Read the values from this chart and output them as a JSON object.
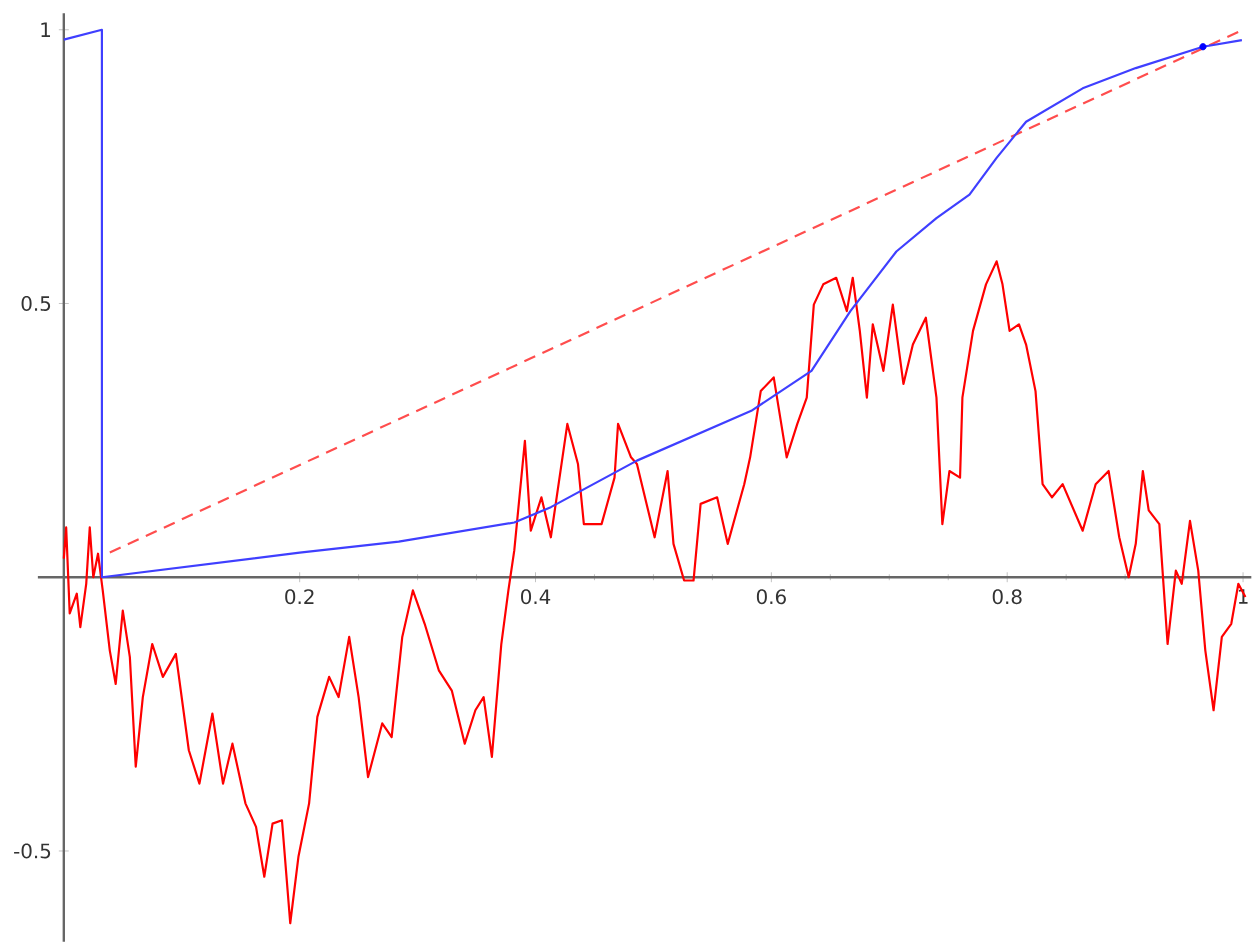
{
  "chart_data": {
    "type": "line",
    "xlim": [
      -0.022,
      1.007
    ],
    "ylim": [
      -0.666,
      1.03
    ],
    "xticks": [
      0.2,
      0.4,
      0.6,
      0.8,
      1
    ],
    "yticks": [
      -0.5,
      0.5,
      1
    ],
    "grid": false,
    "legend": false,
    "marker": "none",
    "series": [
      {
        "color": "#ff0000",
        "x": [
          0,
          0.002,
          0.005,
          0.011,
          0.014,
          0.019,
          0.022,
          0.025,
          0.029,
          0.033,
          0.039,
          0.044,
          0.05,
          0.056,
          0.061,
          0.067,
          0.075,
          0.084,
          0.095,
          0.106,
          0.115,
          0.126,
          0.135,
          0.143,
          0.154,
          0.163,
          0.17,
          0.177,
          0.185,
          0.192,
          0.199,
          0.208,
          0.215,
          0.225,
          0.233,
          0.242,
          0.25,
          0.258,
          0.27,
          0.278,
          0.287,
          0.296,
          0.306,
          0.318,
          0.329,
          0.34,
          0.349,
          0.356,
          0.363,
          0.371,
          0.377,
          0.382,
          0.391,
          0.396,
          0.405,
          0.413,
          0.427,
          0.436,
          0.441,
          0.456,
          0.467,
          0.47,
          0.481,
          0.486,
          0.501,
          0.512,
          0.517,
          0.526,
          0.534,
          0.54,
          0.554,
          0.563,
          0.577,
          0.582,
          0.591,
          0.602,
          0.613,
          0.622,
          0.63,
          0.636,
          0.644,
          0.655,
          0.664,
          0.669,
          0.675,
          0.681,
          0.686,
          0.695,
          0.703,
          0.712,
          0.72,
          0.731,
          0.74,
          0.745,
          0.751,
          0.76,
          0.762,
          0.771,
          0.782,
          0.791,
          0.796,
          0.802,
          0.81,
          0.816,
          0.824,
          0.83,
          0.838,
          0.847,
          0.864,
          0.875,
          0.886,
          0.895,
          0.903,
          0.909,
          0.915,
          0.92,
          0.929,
          0.936,
          0.943,
          0.948,
          0.955,
          0.962,
          0.968,
          0.975,
          0.982,
          0.99,
          0.996,
          1.002
        ],
        "values": [
          0.034,
          0.091,
          -0.066,
          -0.03,
          -0.091,
          -0.012,
          0.091,
          0,
          0.043,
          -0.024,
          -0.134,
          -0.195,
          -0.061,
          -0.146,
          -0.346,
          -0.219,
          -0.122,
          -0.182,
          -0.14,
          -0.316,
          -0.377,
          -0.249,
          -0.377,
          -0.304,
          -0.413,
          -0.456,
          -0.547,
          -0.45,
          -0.444,
          -0.632,
          -0.51,
          -0.413,
          -0.255,
          -0.182,
          -0.219,
          -0.109,
          -0.219,
          -0.365,
          -0.267,
          -0.292,
          -0.109,
          -0.024,
          -0.085,
          -0.17,
          -0.207,
          -0.304,
          -0.243,
          -0.219,
          -0.328,
          -0.122,
          -0.024,
          0.049,
          0.249,
          0.085,
          0.146,
          0.073,
          0.28,
          0.207,
          0.097,
          0.097,
          0.182,
          0.28,
          0.219,
          0.207,
          0.073,
          0.194,
          0.061,
          -0.006,
          -0.006,
          0.134,
          0.146,
          0.061,
          0.17,
          0.219,
          0.34,
          0.365,
          0.219,
          0.28,
          0.328,
          0.498,
          0.535,
          0.547,
          0.486,
          0.547,
          0.45,
          0.328,
          0.462,
          0.377,
          0.498,
          0.353,
          0.425,
          0.474,
          0.328,
          0.097,
          0.194,
          0.182,
          0.328,
          0.45,
          0.535,
          0.577,
          0.535,
          0.45,
          0.462,
          0.425,
          0.34,
          0.17,
          0.146,
          0.17,
          0.085,
          0.17,
          0.194,
          0.073,
          0,
          0.061,
          0.194,
          0.122,
          0.097,
          -0.122,
          0.012,
          -0.012,
          0.103,
          0.012,
          -0.134,
          -0.243,
          -0.109,
          -0.085,
          -0.012,
          -0.036
        ]
      },
      {
        "color": "#ff4d4d",
        "line_style": "dashed",
        "x": [
          0.039,
          1.0
        ],
        "values": [
          0.045,
          1.0
        ]
      },
      {
        "color": "#3f3fff",
        "x": [
          0,
          0.0323,
          0.0323,
          0.2,
          0.284,
          0.382,
          0.413,
          0.486,
          0.583,
          0.634,
          0.667,
          0.706,
          0.74,
          0.768,
          0.791,
          0.816,
          0.864,
          0.909,
          0.966,
          0.999
        ],
        "values": [
          0.982,
          1.0,
          0,
          0.045,
          0.065,
          0.1,
          0.128,
          0.213,
          0.304,
          0.377,
          0.486,
          0.595,
          0.656,
          0.699,
          0.766,
          0.832,
          0.893,
          0.93,
          0.969,
          0.981
        ]
      },
      {
        "type": "scatter",
        "marker": "circle",
        "color": "#0000ff",
        "x": [
          0.966
        ],
        "values": [
          0.969
        ]
      }
    ]
  }
}
